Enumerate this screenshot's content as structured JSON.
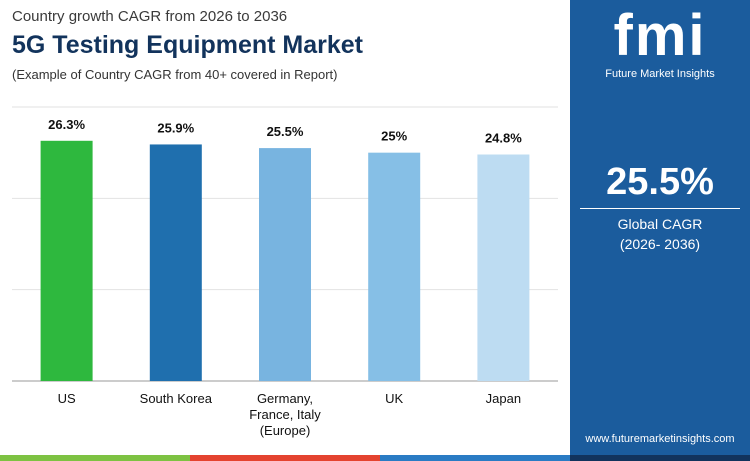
{
  "chart_data": {
    "type": "bar",
    "title": "5G Testing Equipment Market",
    "supertitle": "Country growth CAGR from 2026 to 2036",
    "subtitle": "(Example of Country CAGR from 40+ covered in Report)",
    "categories": [
      "US",
      "South Korea",
      "Germany, France, Italy (Europe)",
      "UK",
      "Japan"
    ],
    "values": [
      26.3,
      25.9,
      25.5,
      25,
      24.8
    ],
    "value_labels": [
      "26.3%",
      "25.9%",
      "25.5%",
      "25%",
      "24.8%"
    ],
    "colors": [
      "#2eb83e",
      "#1f6fae",
      "#78b4e0",
      "#86bfe6",
      "#bddcf2"
    ],
    "ylim": [
      0,
      30
    ],
    "yticks": [
      0,
      10,
      20,
      30
    ],
    "grid": true
  },
  "panel": {
    "value": "25.5%",
    "label": "Global CAGR",
    "period": "(2026- 2036)"
  },
  "brand": {
    "logo": "fmi",
    "name": "Future Market Insights",
    "url": "www.futuremarketinsights.com"
  }
}
